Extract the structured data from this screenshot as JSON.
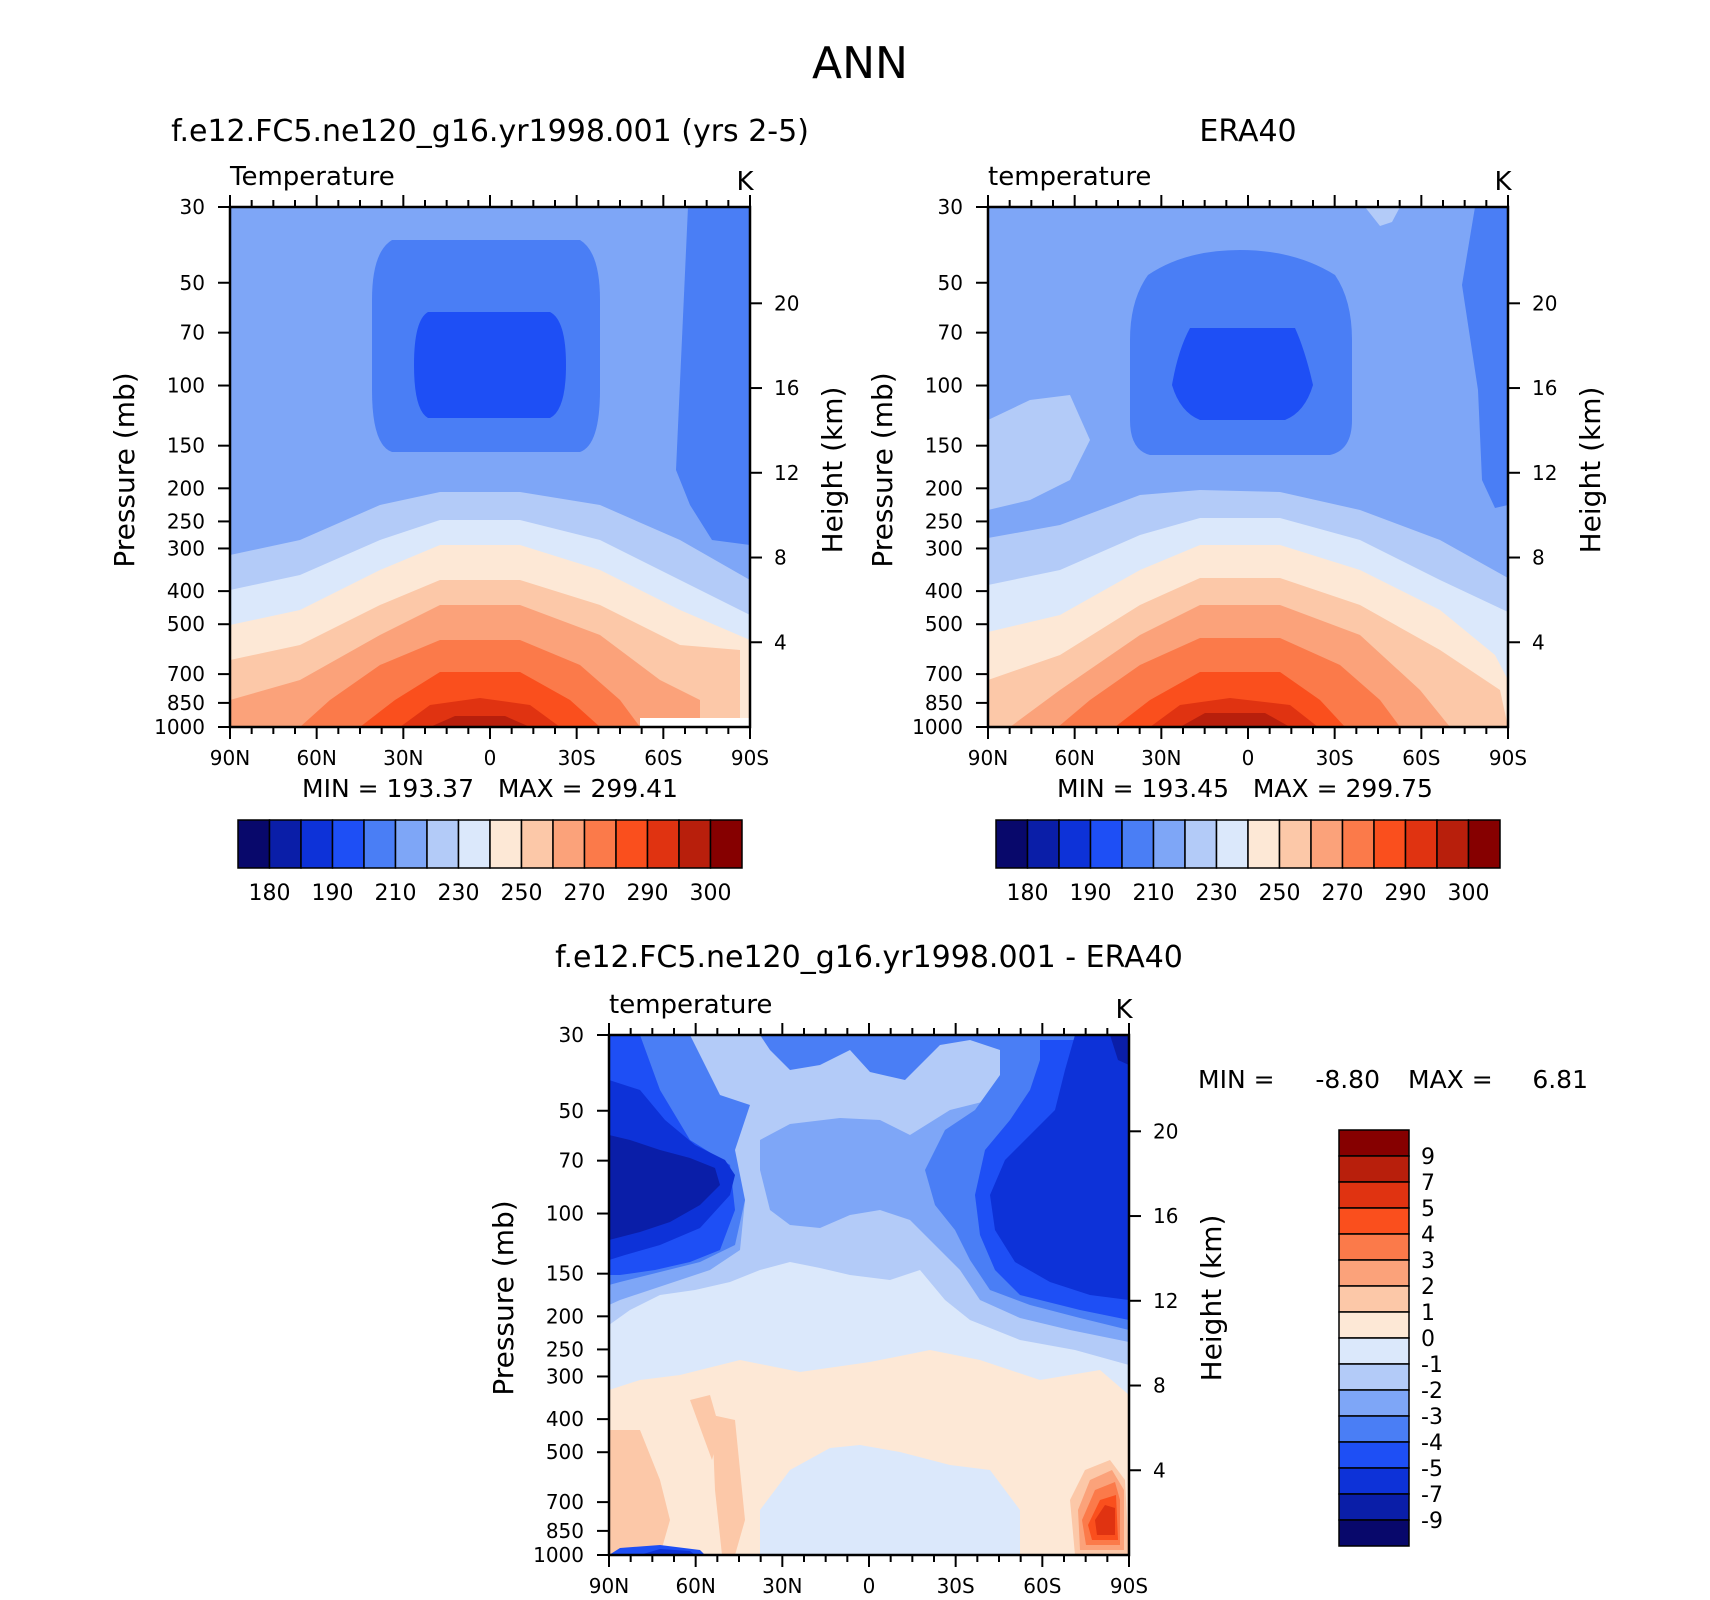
{
  "page": {
    "title": "ANN"
  },
  "chart_data": [
    {
      "type": "heatmap",
      "title": "f.e12.FC5.ne120_g16.yr1998.001 (yrs 2-5)",
      "field_label": "Temperature",
      "units": "K",
      "ylabel": "Pressure (mb)",
      "y2label": "Height (km)",
      "x_ticks": [
        "90N",
        "60N",
        "30N",
        "0",
        "30S",
        "60S",
        "90S"
      ],
      "y_ticks": [
        "30",
        "50",
        "70",
        "100",
        "150",
        "200",
        "250",
        "300",
        "400",
        "500",
        "700",
        "850",
        "1000"
      ],
      "y2_ticks": [
        "20",
        "16",
        "12",
        "8",
        "4"
      ],
      "stats": "MIN = 193.37   MAX = 299.41",
      "colorbar_labels": [
        "180",
        "190",
        "210",
        "230",
        "250",
        "270",
        "290",
        "300"
      ],
      "colorbar_colors": [
        "#08086b",
        "#0a1ea8",
        "#0d32d8",
        "#1e4ff5",
        "#4a7ef5",
        "#7ea6f7",
        "#b3cbf8",
        "#dbe8fb",
        "#fde8d6",
        "#fcc8a8",
        "#fba27a",
        "#fb7a4a",
        "#fa4f1d",
        "#e03311",
        "#b81f0c",
        "#860000"
      ],
      "ylim": [
        1000,
        30
      ],
      "xlim": [
        "90N",
        "90S"
      ]
    },
    {
      "type": "heatmap",
      "title": "ERA40",
      "field_label": "temperature",
      "units": "K",
      "ylabel": "Pressure (mb)",
      "y2label": "Height (km)",
      "x_ticks": [
        "90N",
        "60N",
        "30N",
        "0",
        "30S",
        "60S",
        "90S"
      ],
      "y_ticks": [
        "30",
        "50",
        "70",
        "100",
        "150",
        "200",
        "250",
        "300",
        "400",
        "500",
        "700",
        "850",
        "1000"
      ],
      "y2_ticks": [
        "20",
        "16",
        "12",
        "8",
        "4"
      ],
      "stats": "MIN = 193.45   MAX = 299.75",
      "colorbar_labels": [
        "180",
        "190",
        "210",
        "230",
        "250",
        "270",
        "290",
        "300"
      ],
      "colorbar_colors": [
        "#08086b",
        "#0a1ea8",
        "#0d32d8",
        "#1e4ff5",
        "#4a7ef5",
        "#7ea6f7",
        "#b3cbf8",
        "#dbe8fb",
        "#fde8d6",
        "#fcc8a8",
        "#fba27a",
        "#fb7a4a",
        "#fa4f1d",
        "#e03311",
        "#b81f0c",
        "#860000"
      ],
      "ylim": [
        1000,
        30
      ],
      "xlim": [
        "90N",
        "90S"
      ]
    },
    {
      "type": "heatmap",
      "title": "f.e12.FC5.ne120_g16.yr1998.001 - ERA40",
      "field_label": "temperature",
      "units": "K",
      "ylabel": "Pressure (mb)",
      "y2label": "Height (km)",
      "x_ticks": [
        "90N",
        "60N",
        "30N",
        "0",
        "30S",
        "60S",
        "90S"
      ],
      "y_ticks": [
        "30",
        "50",
        "70",
        "100",
        "150",
        "200",
        "250",
        "300",
        "400",
        "500",
        "700",
        "850",
        "1000"
      ],
      "y2_ticks": [
        "20",
        "16",
        "12",
        "8",
        "4"
      ],
      "stats_min_label": "MIN =",
      "stats_min": "-8.80",
      "stats_max_label": "MAX =",
      "stats_max": "6.81",
      "colorbar_labels": [
        "9",
        "7",
        "5",
        "4",
        "3",
        "2",
        "1",
        "0",
        "-1",
        "-2",
        "-3",
        "-4",
        "-5",
        "-7",
        "-9"
      ],
      "colorbar_colors": [
        "#860000",
        "#b81f0c",
        "#e03311",
        "#fa4f1d",
        "#fb7a4a",
        "#fba27a",
        "#fcc8a8",
        "#fde8d6",
        "#dbe8fb",
        "#b3cbf8",
        "#7ea6f7",
        "#4a7ef5",
        "#1e4ff5",
        "#0d32d8",
        "#0a1ea8",
        "#08086b"
      ],
      "ylim": [
        1000,
        30
      ],
      "xlim": [
        "90N",
        "90S"
      ]
    }
  ]
}
